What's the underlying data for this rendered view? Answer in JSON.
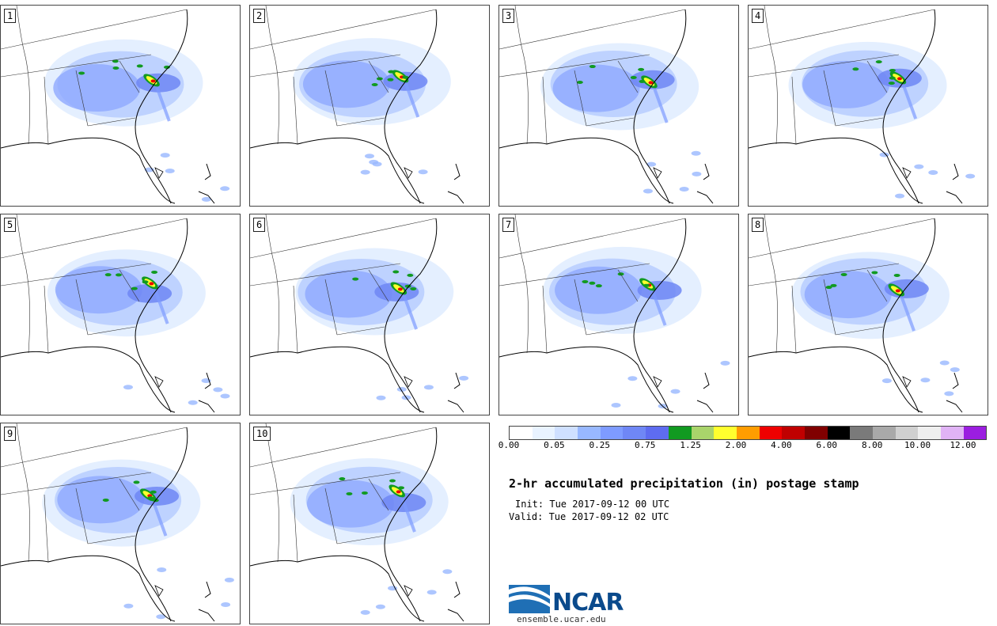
{
  "panels": [
    {
      "label": "1"
    },
    {
      "label": "2"
    },
    {
      "label": "3"
    },
    {
      "label": "4"
    },
    {
      "label": "5"
    },
    {
      "label": "6"
    },
    {
      "label": "7"
    },
    {
      "label": "8"
    },
    {
      "label": "9"
    },
    {
      "label": "10"
    }
  ],
  "colorbar": {
    "colors": [
      "#ffffff",
      "#e9f3ff",
      "#cfe0ff",
      "#98b8ff",
      "#7e9bff",
      "#6f87f5",
      "#5e6cf0",
      "#119a21",
      "#a9d46b",
      "#ffff2e",
      "#ff9d00",
      "#ee0000",
      "#c00000",
      "#800000",
      "#000000",
      "#7a7a7a",
      "#a9a9a9",
      "#d0d0d0",
      "#efefef",
      "#e0b3f5",
      "#9b1ee0"
    ],
    "ticks": [
      "0.00",
      "0.05",
      "0.25",
      "0.75",
      "1.25",
      "2.00",
      "4.00",
      "6.00",
      "8.00",
      "10.00",
      "12.00"
    ]
  },
  "title": "2-hr accumulated precipitation (in) postage stamp",
  "init": "Init: Tue 2017-09-12 00 UTC",
  "valid": "Valid: Tue 2017-09-12 02 UTC",
  "logo": {
    "name": "NCAR",
    "url": "ensemble.ucar.edu"
  }
}
